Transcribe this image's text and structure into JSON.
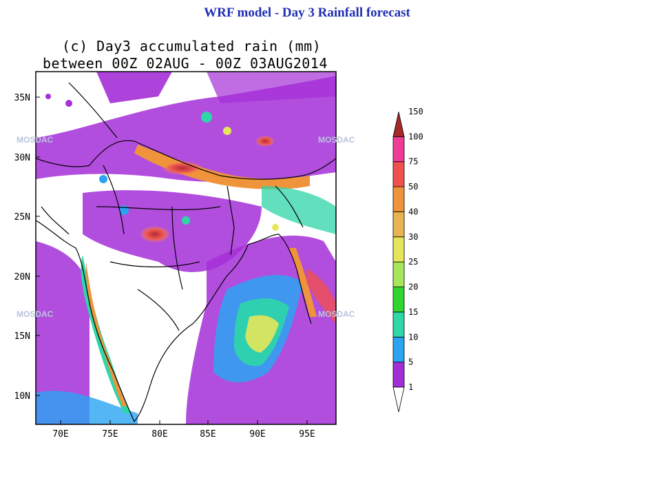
{
  "page_title": "WRF model  - Day 3 Rainfall forecast",
  "plot_title_line1": "(c) Day3 accumulated rain (mm)",
  "plot_title_line2": "between 00Z 02AUG - 00Z 03AUG2014",
  "lat_labels": [
    "35N",
    "30N",
    "25N",
    "20N",
    "15N",
    "10N"
  ],
  "lon_labels": [
    "70E",
    "75E",
    "80E",
    "85E",
    "90E",
    "95E"
  ],
  "colorbar": {
    "labels": [
      "1",
      "5",
      "10",
      "15",
      "20",
      "25",
      "30",
      "40",
      "50",
      "75",
      "100",
      "150"
    ],
    "colors": [
      "#a12ed6",
      "#2aa4f2",
      "#2ed6a8",
      "#2ed62e",
      "#a6e65a",
      "#e6e65a",
      "#e6b450",
      "#f0943c",
      "#f05050",
      "#f03c96",
      "#a62828"
    ]
  },
  "watermark": "MOSDAC"
}
